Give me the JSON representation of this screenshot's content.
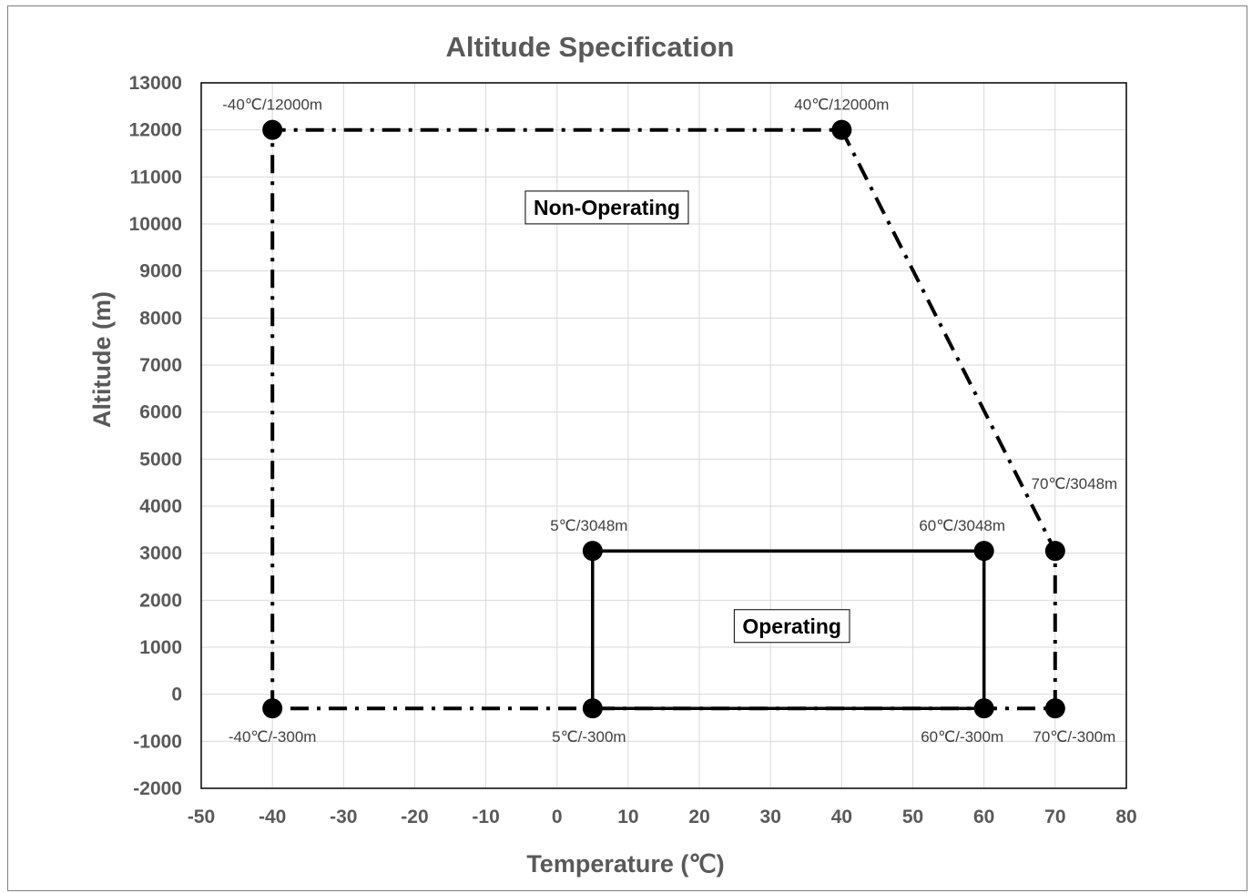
{
  "chart_data": {
    "type": "scatter",
    "title": "Altitude Specification",
    "xlabel": "Temperature (℃)",
    "ylabel": "Altitude (m)",
    "xlim": [
      -50,
      80
    ],
    "ylim": [
      -2000,
      13000
    ],
    "xticks": [
      "-50",
      "-40",
      "-30",
      "-20",
      "-10",
      "0",
      "10",
      "20",
      "30",
      "40",
      "50",
      "60",
      "70",
      "80"
    ],
    "yticks": [
      "13000",
      "12000",
      "11000",
      "10000",
      "9000",
      "8000",
      "7000",
      "6000",
      "5000",
      "4000",
      "3000",
      "2000",
      "1000",
      "0",
      "-1000",
      "-2000"
    ],
    "grid": true,
    "series": [
      {
        "name": "Non-Operating",
        "line_style": "dash-dot",
        "color": "#000000",
        "points": [
          {
            "x": -40,
            "y": -300,
            "label": "-40℃/-300m"
          },
          {
            "x": -40,
            "y": 12000,
            "label": "-40℃/12000m"
          },
          {
            "x": 40,
            "y": 12000,
            "label": "40℃/12000m"
          },
          {
            "x": 70,
            "y": 3048,
            "label": "70℃/3048m"
          },
          {
            "x": 70,
            "y": -300,
            "label": "70℃/-300m"
          },
          {
            "x": -40,
            "y": -300,
            "label": ""
          }
        ]
      },
      {
        "name": "Operating",
        "line_style": "solid",
        "color": "#000000",
        "points": [
          {
            "x": 5,
            "y": -300,
            "label": "5℃/-300m"
          },
          {
            "x": 5,
            "y": 3048,
            "label": "5℃/3048m"
          },
          {
            "x": 60,
            "y": 3048,
            "label": "60℃/3048m"
          },
          {
            "x": 60,
            "y": -300,
            "label": "60℃/-300m"
          },
          {
            "x": 5,
            "y": -300,
            "label": ""
          }
        ]
      }
    ],
    "annotations": [
      {
        "text": "Non-Operating",
        "x": 7,
        "y": 10350
      },
      {
        "text": "Operating",
        "x": 33,
        "y": 1450
      }
    ]
  }
}
